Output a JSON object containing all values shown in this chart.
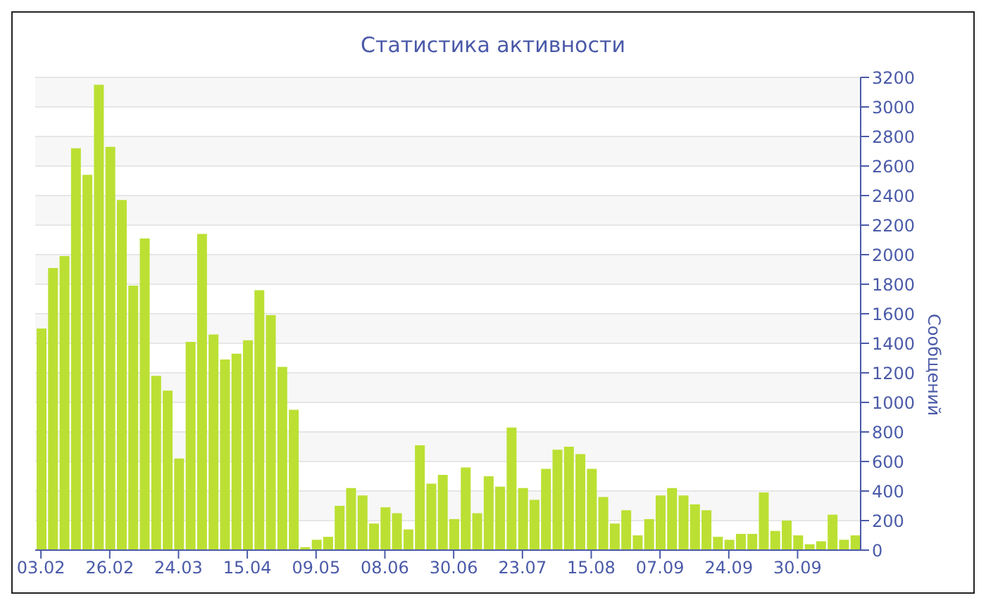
{
  "chart_data": {
    "type": "bar",
    "title": "Статистика активности",
    "ylabel": "Сообщений",
    "categories": [
      "03.02",
      null,
      null,
      null,
      null,
      null,
      "26.02",
      null,
      null,
      null,
      null,
      null,
      "24.03",
      null,
      null,
      null,
      null,
      null,
      "15.04",
      null,
      null,
      null,
      null,
      null,
      "09.05",
      null,
      null,
      null,
      null,
      null,
      "08.06",
      null,
      null,
      null,
      null,
      null,
      "30.06",
      null,
      null,
      null,
      null,
      null,
      "23.07",
      null,
      null,
      null,
      null,
      null,
      "15.08",
      null,
      null,
      null,
      null,
      null,
      "07.09",
      null,
      null,
      null,
      null,
      null,
      "24.09",
      null,
      null,
      null,
      null,
      null,
      "30.09",
      null,
      null,
      null,
      null,
      null
    ],
    "values": [
      1500,
      1910,
      1990,
      2720,
      2540,
      3150,
      2730,
      2370,
      1790,
      2110,
      1180,
      1080,
      620,
      1410,
      2140,
      1460,
      1290,
      1330,
      1420,
      1760,
      1590,
      1240,
      950,
      20,
      70,
      90,
      300,
      420,
      370,
      180,
      290,
      250,
      140,
      710,
      450,
      510,
      210,
      560,
      250,
      500,
      430,
      830,
      420,
      340,
      550,
      680,
      700,
      650,
      550,
      360,
      180,
      270,
      100,
      210,
      370,
      420,
      370,
      310,
      270,
      90,
      70,
      110,
      110,
      390,
      130,
      200,
      100,
      40,
      60,
      240,
      70,
      100
    ],
    "color": "#bbe033",
    "ylim": [
      0,
      3200
    ],
    "yticks": [
      0,
      200,
      400,
      600,
      800,
      1000,
      1200,
      1400,
      1600,
      1800,
      2000,
      2200,
      2400,
      2600,
      2800,
      3000,
      3200
    ],
    "grid": "y"
  }
}
